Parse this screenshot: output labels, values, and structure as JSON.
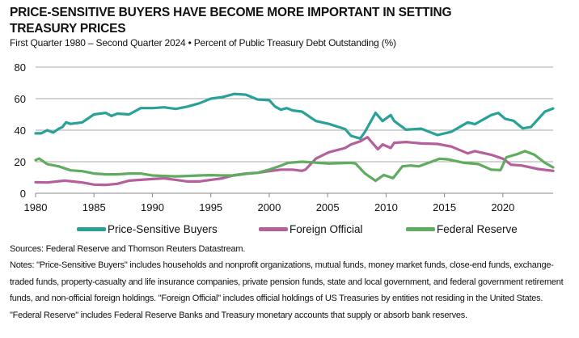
{
  "title": "PRICE-SENSITIVE BUYERS HAVE BECOME MORE IMPORTANT IN SETTING TREASURY PRICES",
  "subtitle": "First Quarter 1980 – Second Quarter 2024 • Percent of Public Treasury Debt Outstanding (%)",
  "sources": "Sources: Federal Reserve and Thomson Reuters Datastream.",
  "notes": "Notes: \"Price-Sensitive Buyers\" includes households and nonprofit organizations, mutual funds, money market funds, close-end funds, exchange-traded funds, property-casualty and life insurance companies, private pension funds, state and local government, and federal government retirement funds, and non-official foreign holdings. \"Foreign Official\" includes official holdings of US Treasuries by entities not residing in the United States. \"Federal Reserve\" includes Federal Reserve Banks and Treasury monetary accounts that supply or absorb bank reserves.",
  "chart_data": {
    "type": "line",
    "title": "PRICE-SENSITIVE BUYERS HAVE BECOME MORE IMPORTANT IN SETTING TREASURY PRICES",
    "xlabel": "",
    "ylabel": "Percent of Public Treasury Debt Outstanding (%)",
    "xlim": [
      1980,
      2024.3
    ],
    "ylim": [
      0,
      80
    ],
    "xticks": [
      "1980",
      "1985",
      "1990",
      "1995",
      "2000",
      "2005",
      "2010",
      "2015",
      "2020"
    ],
    "yticks": [
      "0",
      "20",
      "40",
      "60",
      "80"
    ],
    "grid": true,
    "legend": "bottom",
    "series": [
      {
        "name": "Price-Sensitive Buyers",
        "color": "#2aa198",
        "points": [
          [
            1980,
            38
          ],
          [
            1980.5,
            38
          ],
          [
            1981,
            40
          ],
          [
            1981.5,
            38.5
          ],
          [
            1982,
            41
          ],
          [
            1982.3,
            42
          ],
          [
            1982.6,
            45
          ],
          [
            1983,
            44
          ],
          [
            1984,
            45
          ],
          [
            1985,
            50
          ],
          [
            1985.5,
            50.5
          ],
          [
            1986,
            51
          ],
          [
            1986.5,
            49
          ],
          [
            1987,
            50.5
          ],
          [
            1988,
            50
          ],
          [
            1989,
            54
          ],
          [
            1990,
            54
          ],
          [
            1991,
            54.5
          ],
          [
            1992,
            53.5
          ],
          [
            1993,
            55
          ],
          [
            1994,
            57
          ],
          [
            1995,
            60
          ],
          [
            1996,
            61
          ],
          [
            1997,
            63
          ],
          [
            1998,
            62.5
          ],
          [
            1999,
            59.5
          ],
          [
            2000,
            59
          ],
          [
            2000.5,
            55
          ],
          [
            2001,
            53
          ],
          [
            2001.5,
            54
          ],
          [
            2002,
            52.5
          ],
          [
            2002.8,
            51.8
          ],
          [
            2004,
            45.8
          ],
          [
            2005.1,
            44
          ],
          [
            2006.5,
            40.7
          ],
          [
            2007,
            36.4
          ],
          [
            2007.8,
            34.7
          ],
          [
            2008.2,
            39
          ],
          [
            2009.1,
            51
          ],
          [
            2009.7,
            45.8
          ],
          [
            2010.4,
            49.6
          ],
          [
            2010.7,
            45.8
          ],
          [
            2011.7,
            40.3
          ],
          [
            2013,
            41
          ],
          [
            2014.4,
            36.9
          ],
          [
            2015.6,
            39
          ],
          [
            2017,
            45
          ],
          [
            2017.6,
            43.8
          ],
          [
            2019,
            49.6
          ],
          [
            2019.6,
            51
          ],
          [
            2020.2,
            47.2
          ],
          [
            2020.9,
            46
          ],
          [
            2021.7,
            41.2
          ],
          [
            2022.4,
            42
          ],
          [
            2023.6,
            51.8
          ],
          [
            2024.3,
            53.8
          ]
        ]
      },
      {
        "name": "Foreign Official",
        "color": "#b5609c",
        "points": [
          [
            1980,
            7
          ],
          [
            1981,
            6.8
          ],
          [
            1982.5,
            8
          ],
          [
            1984,
            6.8
          ],
          [
            1985,
            5.5
          ],
          [
            1986,
            5.3
          ],
          [
            1987,
            6
          ],
          [
            1988,
            8
          ],
          [
            1989,
            8.5
          ],
          [
            1990,
            9
          ],
          [
            1991,
            9.5
          ],
          [
            1992,
            8.5
          ],
          [
            1993,
            7.5
          ],
          [
            1994,
            7.5
          ],
          [
            1995,
            8.5
          ],
          [
            1996,
            9.5
          ],
          [
            1997,
            11.5
          ],
          [
            1998,
            12.5
          ],
          [
            1999,
            13
          ],
          [
            2000,
            14
          ],
          [
            2001,
            15
          ],
          [
            2002,
            15
          ],
          [
            2002.8,
            14.2
          ],
          [
            2003.1,
            15
          ],
          [
            2004,
            22
          ],
          [
            2005.1,
            26
          ],
          [
            2006.5,
            28.7
          ],
          [
            2007,
            31
          ],
          [
            2007.8,
            33
          ],
          [
            2008.4,
            35.6
          ],
          [
            2009.3,
            27.9
          ],
          [
            2009.7,
            31
          ],
          [
            2010.4,
            28.7
          ],
          [
            2010.7,
            32
          ],
          [
            2011.7,
            32.5
          ],
          [
            2013,
            31.6
          ],
          [
            2014.4,
            31.3
          ],
          [
            2015.6,
            29.6
          ],
          [
            2017,
            25.3
          ],
          [
            2017.6,
            26.7
          ],
          [
            2019,
            24.4
          ],
          [
            2020,
            21.9
          ],
          [
            2020.7,
            18.1
          ],
          [
            2021.6,
            17.6
          ],
          [
            2023,
            15.4
          ],
          [
            2024.3,
            14.2
          ]
        ]
      },
      {
        "name": "Federal Reserve",
        "color": "#5fab5f",
        "points": [
          [
            1980,
            21
          ],
          [
            1980.3,
            22
          ],
          [
            1981,
            18.5
          ],
          [
            1982,
            17
          ],
          [
            1983,
            14.5
          ],
          [
            1984,
            14
          ],
          [
            1985,
            12.5
          ],
          [
            1986,
            12
          ],
          [
            1987,
            12
          ],
          [
            1988,
            12.5
          ],
          [
            1989,
            12.5
          ],
          [
            1990,
            11.3
          ],
          [
            1991,
            11
          ],
          [
            1992,
            10.7
          ],
          [
            1993,
            11
          ],
          [
            1994,
            11.3
          ],
          [
            1995,
            11.5
          ],
          [
            1996,
            11.3
          ],
          [
            1997,
            11.3
          ],
          [
            1998,
            12.3
          ],
          [
            1999,
            13
          ],
          [
            2000,
            15
          ],
          [
            2001,
            17.5
          ],
          [
            2001.6,
            19.3
          ],
          [
            2002.8,
            20
          ],
          [
            2005.1,
            18.8
          ],
          [
            2007,
            19.3
          ],
          [
            2007.4,
            18.8
          ],
          [
            2008.2,
            12.5
          ],
          [
            2009.1,
            7.9
          ],
          [
            2009.8,
            11.6
          ],
          [
            2010.6,
            9.6
          ],
          [
            2011.4,
            17.1
          ],
          [
            2012.1,
            17.6
          ],
          [
            2012.8,
            17.1
          ],
          [
            2014.6,
            21.9
          ],
          [
            2015.3,
            21.5
          ],
          [
            2016.7,
            19.3
          ],
          [
            2017.9,
            18.5
          ],
          [
            2019,
            15
          ],
          [
            2019.8,
            14.7
          ],
          [
            2020.3,
            22.8
          ],
          [
            2021.3,
            25
          ],
          [
            2021.9,
            26.7
          ],
          [
            2022.7,
            24.4
          ],
          [
            2023.6,
            19.3
          ],
          [
            2024.3,
            16.4
          ]
        ]
      }
    ]
  }
}
